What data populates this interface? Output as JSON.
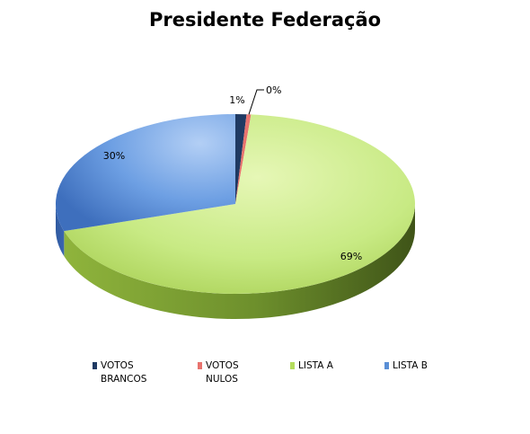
{
  "chart_data": {
    "type": "pie",
    "title": "Presidente Federação",
    "categories": [
      "VOTOS BRANCOS",
      "VOTOS NULOS",
      "LISTA A",
      "LISTA B"
    ],
    "values": [
      1,
      0.4,
      69,
      30
    ],
    "data_labels": [
      "1%",
      "0%",
      "69%",
      "30%"
    ],
    "colors": [
      "#1f3a63",
      "#e8736e",
      "#b4dc5c",
      "#5a8fd6"
    ],
    "legend_position": "bottom",
    "style": "3d"
  }
}
